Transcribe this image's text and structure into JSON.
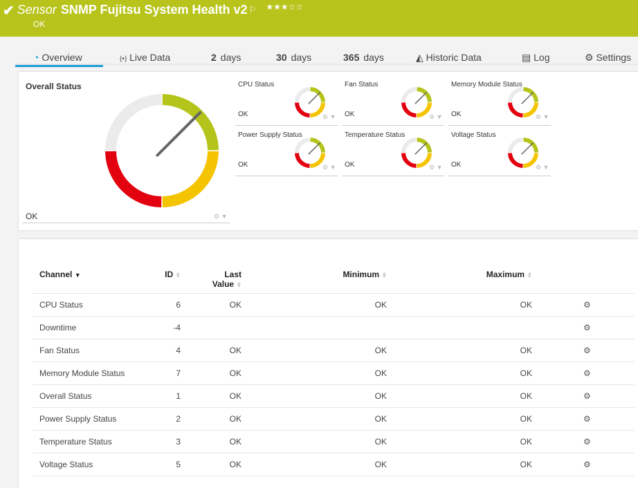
{
  "header": {
    "prefix": "Sensor",
    "title": "SNMP Fujitsu System Health v2",
    "status": "OK",
    "stars": "★★★☆☆",
    "rating": 3,
    "color": "#b8c41b"
  },
  "tabs": [
    {
      "label": "Overview",
      "icon": "gauge-icon"
    },
    {
      "label": "Live Data",
      "icon": "broadcast-icon"
    },
    {
      "num": "2",
      "label": "days"
    },
    {
      "num": "30",
      "label": "days"
    },
    {
      "num": "365",
      "label": "days"
    },
    {
      "label": "Historic Data",
      "icon": "area-chart-icon"
    },
    {
      "label": "Log",
      "icon": "list-icon"
    },
    {
      "label": "Settings",
      "icon": "gear-icon"
    }
  ],
  "overview": {
    "title": "Overall Status",
    "value": "OK"
  },
  "gauges": [
    {
      "label": "CPU Status",
      "value": "OK"
    },
    {
      "label": "Fan Status",
      "value": "OK"
    },
    {
      "label": "Memory Module Status",
      "value": "OK"
    },
    {
      "label": "Power Supply Status",
      "value": "OK"
    },
    {
      "label": "Temperature Status",
      "value": "OK"
    },
    {
      "label": "Voltage Status",
      "value": "OK"
    }
  ],
  "gauge_colors": {
    "empty": "#ebebeb",
    "ok": "#b5c41b",
    "warning": "#f5c400",
    "error": "#e3000f",
    "needle": "#666666"
  },
  "table": {
    "headers": {
      "channel": "Channel",
      "id": "ID",
      "last1": "Last",
      "last2": "Value",
      "min": "Minimum",
      "max": "Maximum"
    },
    "rows": [
      {
        "channel": "CPU Status",
        "id": "6",
        "last": "OK",
        "min": "OK",
        "max": "OK"
      },
      {
        "channel": "Downtime",
        "id": "-4",
        "last": "",
        "min": "",
        "max": ""
      },
      {
        "channel": "Fan Status",
        "id": "4",
        "last": "OK",
        "min": "OK",
        "max": "OK"
      },
      {
        "channel": "Memory Module Status",
        "id": "7",
        "last": "OK",
        "min": "OK",
        "max": "OK"
      },
      {
        "channel": "Overall Status",
        "id": "1",
        "last": "OK",
        "min": "OK",
        "max": "OK"
      },
      {
        "channel": "Power Supply Status",
        "id": "2",
        "last": "OK",
        "min": "OK",
        "max": "OK"
      },
      {
        "channel": "Temperature Status",
        "id": "3",
        "last": "OK",
        "min": "OK",
        "max": "OK"
      },
      {
        "channel": "Voltage Status",
        "id": "5",
        "last": "OK",
        "min": "OK",
        "max": "OK"
      }
    ]
  }
}
